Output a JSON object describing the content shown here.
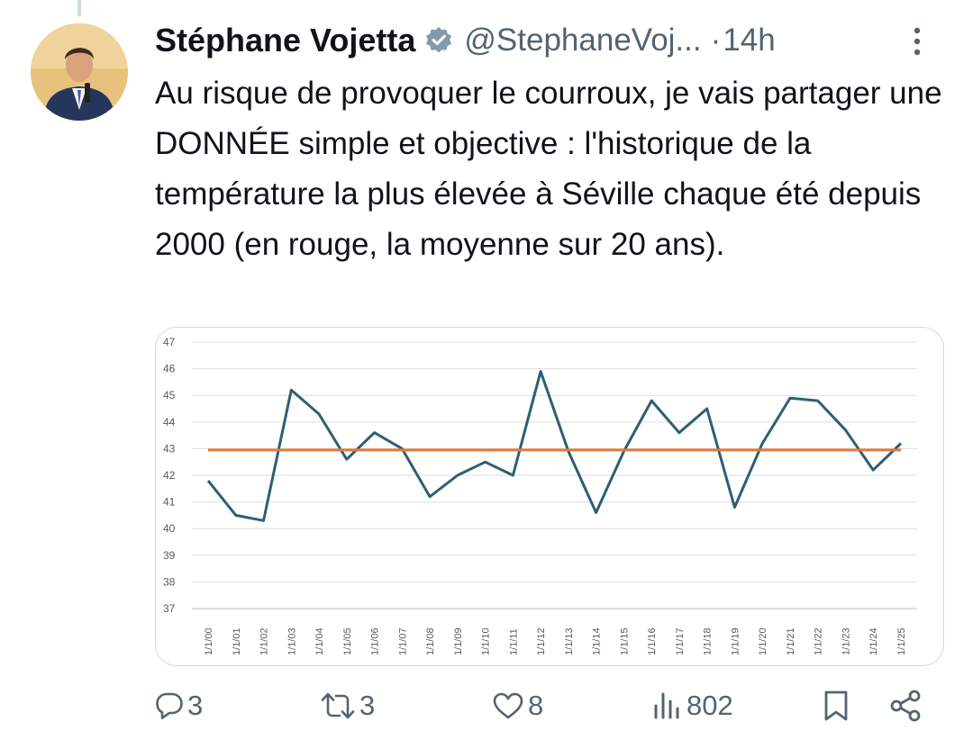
{
  "tweet": {
    "author_name": "Stéphane Vojetta",
    "handle": "@StephaneVoj...",
    "separator": "·",
    "time": "14h",
    "text": "Au risque de provoquer le courroux, je vais partager une DONNÉE simple et objective : l'historique de la température la plus élevée à Séville chaque été depuis 2000 (en rouge, la moyenne sur 20 ans)."
  },
  "icons": {
    "verified": "verified-badge-icon",
    "more": "more-vertical-icon",
    "reply": "reply-icon",
    "retweet": "retweet-icon",
    "like": "like-icon",
    "views": "views-icon",
    "bookmark": "bookmark-icon",
    "share": "share-icon"
  },
  "colors": {
    "series_line": "#2e5f73",
    "average_line": "#e07b39",
    "verified": "#829aab",
    "secondary_text": "#536471"
  },
  "actions": {
    "replies": "3",
    "retweets": "3",
    "likes": "8",
    "views": "802"
  },
  "chart_data": {
    "type": "line",
    "categories": [
      "1/1/00",
      "1/1/01",
      "1/1/02",
      "1/1/03",
      "1/1/04",
      "1/1/05",
      "1/1/06",
      "1/1/07",
      "1/1/08",
      "1/1/09",
      "1/1/10",
      "1/1/11",
      "1/1/12",
      "1/1/13",
      "1/1/14",
      "1/1/15",
      "1/1/16",
      "1/1/17",
      "1/1/18",
      "1/1/19",
      "1/1/20",
      "1/1/21",
      "1/1/22",
      "1/1/23",
      "1/1/24",
      "1/1/25"
    ],
    "series": [
      {
        "values": [
          41.8,
          40.5,
          40.3,
          45.2,
          44.3,
          42.6,
          43.6,
          43.0,
          41.2,
          42.0,
          42.5,
          42.0,
          45.9,
          42.9,
          40.6,
          42.9,
          44.8,
          43.6,
          44.5,
          40.8,
          43.2,
          44.9,
          44.8,
          43.7,
          42.2,
          43.2
        ]
      },
      {
        "values": [
          42.95,
          42.95,
          42.95,
          42.95,
          42.95,
          42.95,
          42.95,
          42.95,
          42.95,
          42.95,
          42.95,
          42.95,
          42.95,
          42.95,
          42.95,
          42.95,
          42.95,
          42.95,
          42.95,
          42.95,
          42.95,
          42.95,
          42.95,
          42.95,
          42.95,
          42.95
        ]
      }
    ],
    "yticks": [
      "47",
      "46",
      "45",
      "44",
      "43",
      "42",
      "41",
      "40",
      "39",
      "38",
      "37"
    ],
    "ylim": [
      37,
      47
    ],
    "grid": true,
    "title": "",
    "xlabel": "",
    "ylabel": ""
  }
}
